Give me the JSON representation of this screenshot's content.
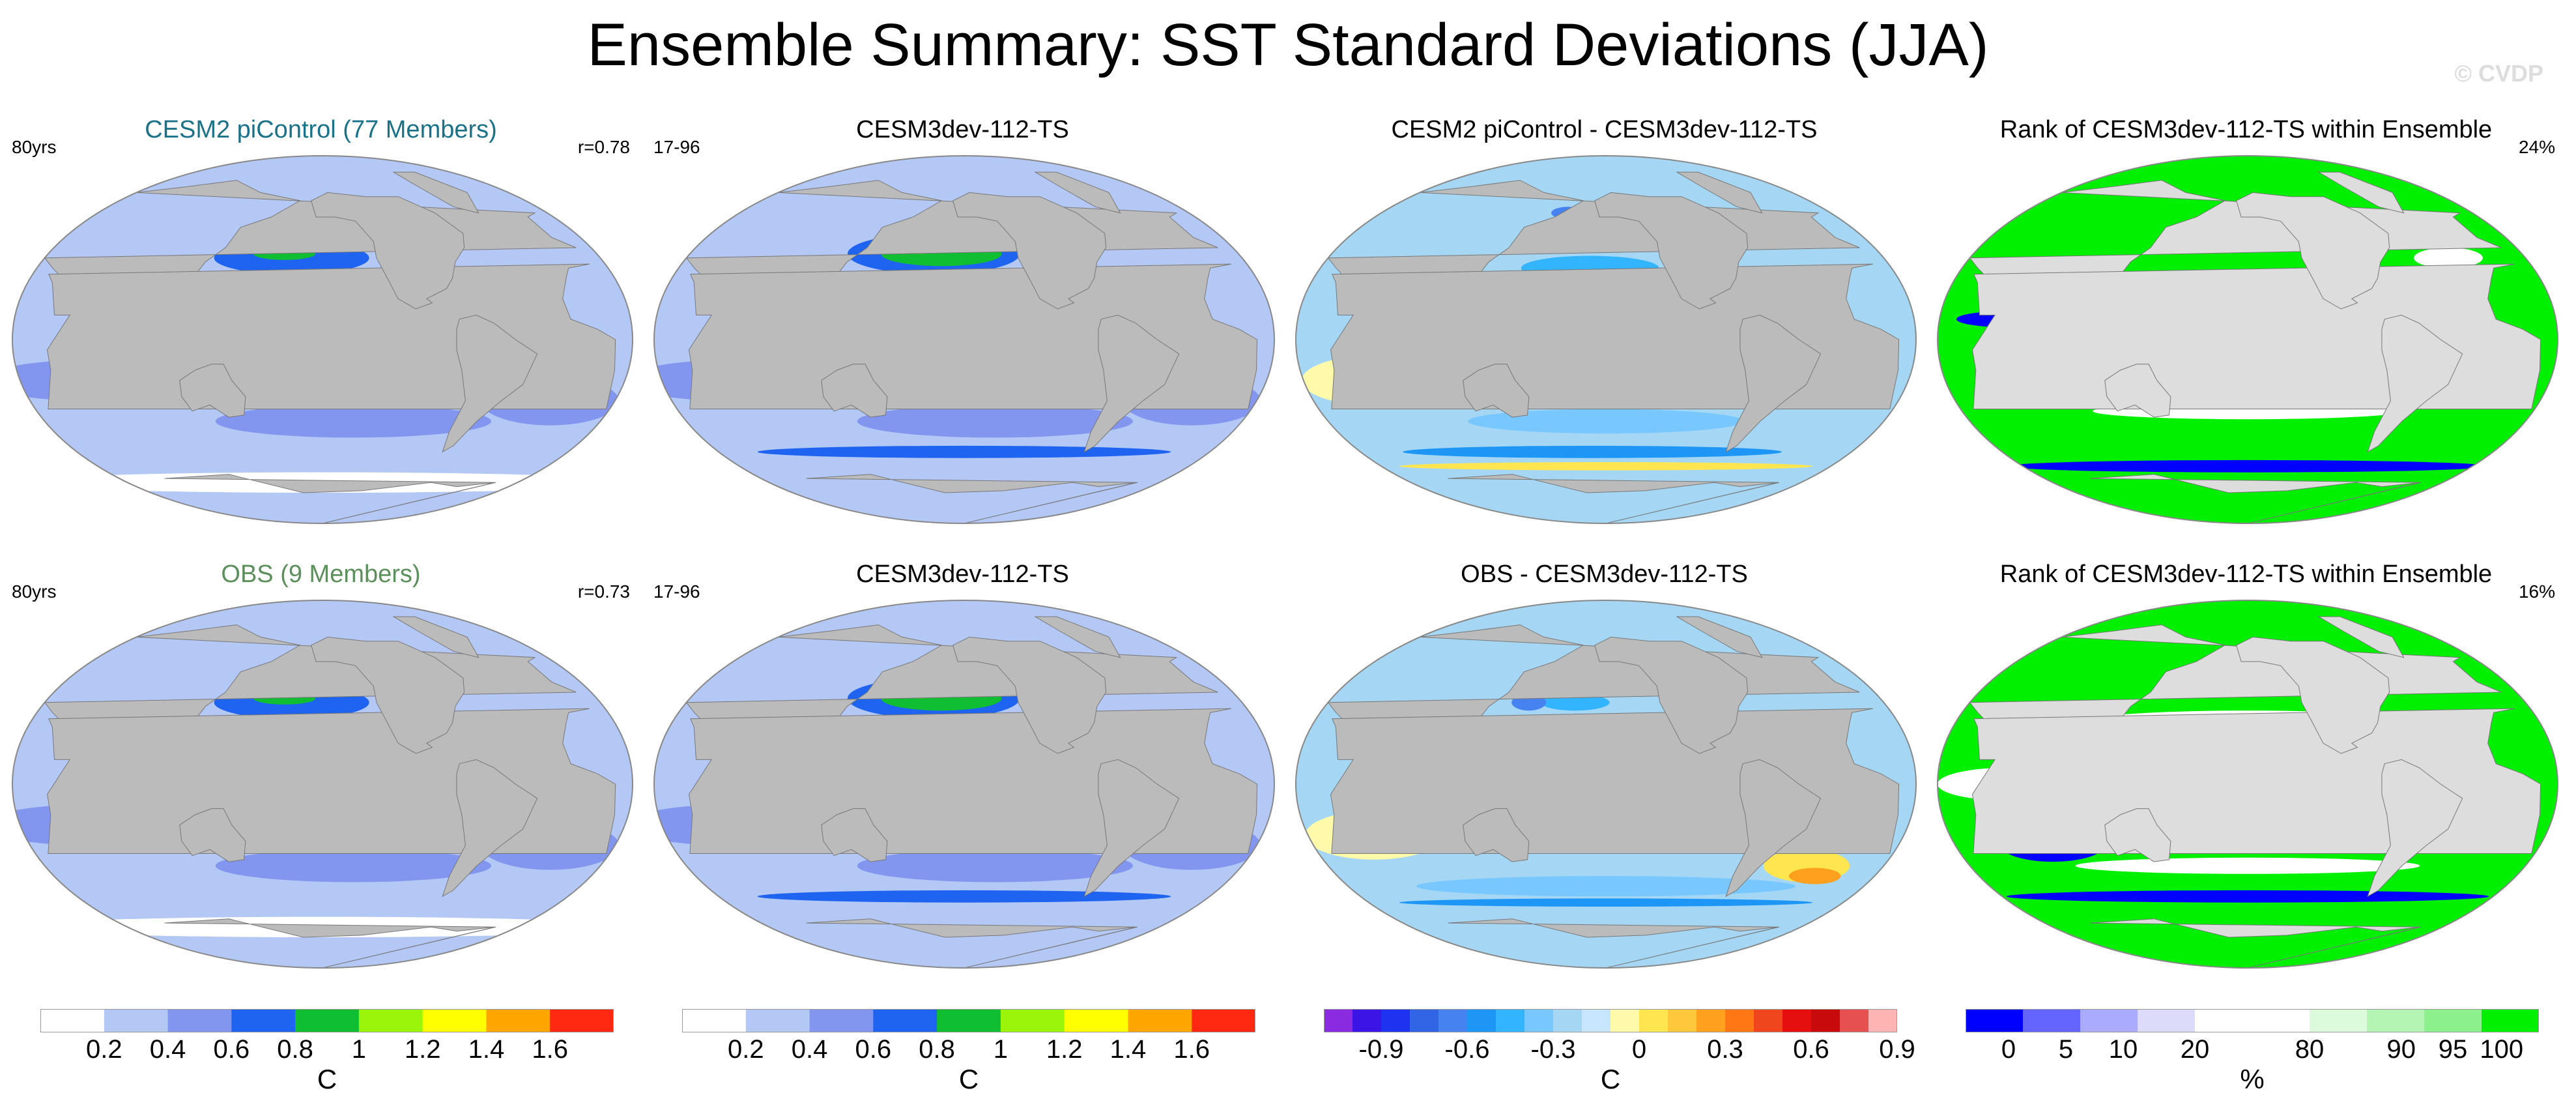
{
  "page": {
    "title": "Ensemble Summary: SST Standard Deviations (JJA)",
    "credit": "© CVDP"
  },
  "panels": [
    {
      "title": "CESM2 piControl (77 Members)",
      "title_color": "#1a7289",
      "left_note": "80yrs",
      "right_note": "r=0.78",
      "kind": "sd"
    },
    {
      "title": "CESM3dev-112-TS",
      "title_color": "#000000",
      "left_note": "17-96",
      "right_note": "",
      "kind": "sd2"
    },
    {
      "title": "CESM2 piControl - CESM3dev-112-TS",
      "title_color": "#000000",
      "left_note": "",
      "right_note": "",
      "kind": "diff"
    },
    {
      "title": "Rank of CESM3dev-112-TS within Ensemble",
      "title_color": "#000000",
      "left_note": "",
      "right_note": "24%",
      "kind": "rank"
    },
    {
      "title": "OBS (9 Members)",
      "title_color": "#5b8f5b",
      "left_note": "80yrs",
      "right_note": "r=0.73",
      "kind": "sd"
    },
    {
      "title": "CESM3dev-112-TS",
      "title_color": "#000000",
      "left_note": "17-96",
      "right_note": "",
      "kind": "sd2"
    },
    {
      "title": "OBS - CESM3dev-112-TS",
      "title_color": "#000000",
      "left_note": "",
      "right_note": "",
      "kind": "diff2"
    },
    {
      "title": "Rank of CESM3dev-112-TS within Ensemble",
      "title_color": "#000000",
      "left_note": "",
      "right_note": "16%",
      "kind": "rank2"
    }
  ],
  "colorbars": [
    {
      "unit": "C",
      "colors": [
        "#ffffff",
        "#b4c8f5",
        "#8296f0",
        "#1e64f0",
        "#10be32",
        "#9bf50a",
        "#ffff00",
        "#ffa500",
        "#ff2810"
      ],
      "labels": [
        "0.2",
        "0.4",
        "0.6",
        "0.8",
        "1",
        "1.2",
        "1.4",
        "1.6"
      ]
    },
    {
      "unit": "C",
      "colors": [
        "#ffffff",
        "#b4c8f5",
        "#8296f0",
        "#1e64f0",
        "#10be32",
        "#9bf50a",
        "#ffff00",
        "#ffa500",
        "#ff2810"
      ],
      "labels": [
        "0.2",
        "0.4",
        "0.6",
        "0.8",
        "1",
        "1.2",
        "1.4",
        "1.6"
      ]
    },
    {
      "unit": "C",
      "colors": [
        "#8a2be2",
        "#3c14e6",
        "#1e32f0",
        "#3264e6",
        "#4682f0",
        "#1e96f5",
        "#32b4ff",
        "#78c8ff",
        "#a5d7f5",
        "#c8e6ff",
        "#fffaaa",
        "#ffe650",
        "#ffc83c",
        "#ffa01e",
        "#ff7814",
        "#f0461e",
        "#e60f0f",
        "#c80a0a",
        "#e65050",
        "#ffb4b4"
      ],
      "labels": [
        "-0.9",
        "-0.6",
        "-0.3",
        "0",
        "0.3",
        "0.6",
        "0.9"
      ]
    },
    {
      "unit": "%",
      "colors": [
        "#0000ff",
        "#6464ff",
        "#aaaaff",
        "#dcdcfa",
        "#ffffff",
        "#ffffff",
        "#dcfadc",
        "#b4f5b4",
        "#8cf08c",
        "#00f000"
      ],
      "labels": [
        "0",
        "5",
        "10",
        "20",
        "80",
        "90",
        "95",
        "100"
      ]
    }
  ]
}
